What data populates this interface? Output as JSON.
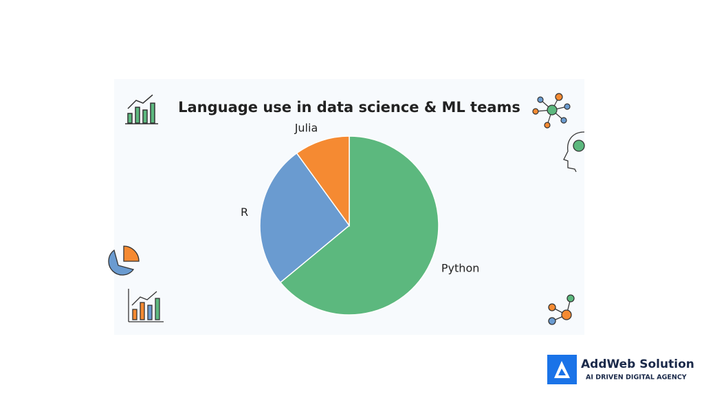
{
  "chart_data": {
    "type": "pie",
    "title": "Language use in data science & ML teams",
    "categories": [
      "Python",
      "R",
      "Julia"
    ],
    "values": [
      64,
      26,
      10
    ],
    "colors": [
      "#5cb87e",
      "#6a9bd0",
      "#f58a32"
    ]
  },
  "brand": {
    "name": "AddWeb Solution",
    "tagline": "AI DRIVEN DIGITAL AGENCY"
  }
}
